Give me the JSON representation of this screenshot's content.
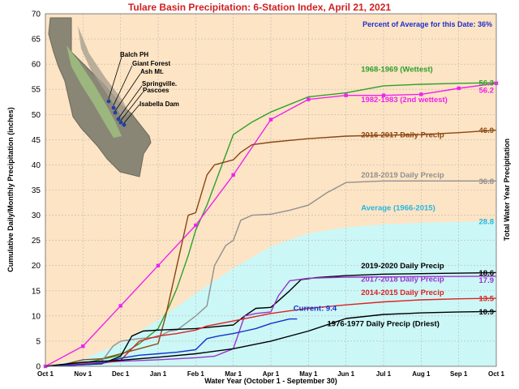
{
  "chart_data": {
    "type": "line",
    "title": "Tulare Basin Precipitation: 6-Station Index, April 21, 2021",
    "note": "Percent of Average for this Date: 36%",
    "xlabel": "Water Year (October 1 - September 30)",
    "ylabel": "Cumulative Daily/Monthly Precipitation (inches)",
    "ylabel_right": "Total Water Year Precipitation",
    "xlim": [
      0,
      12
    ],
    "ylim": [
      0,
      70
    ],
    "x_ticks": [
      {
        "x": 0,
        "label": "Oct 1"
      },
      {
        "x": 1,
        "label": "Nov 1"
      },
      {
        "x": 2,
        "label": "Dec 1"
      },
      {
        "x": 3,
        "label": "Jan 1"
      },
      {
        "x": 4,
        "label": "Feb 1"
      },
      {
        "x": 5,
        "label": "Mar 1"
      },
      {
        "x": 6,
        "label": "Apr 1"
      },
      {
        "x": 7,
        "label": "May 1"
      },
      {
        "x": 8,
        "label": "Jun 1"
      },
      {
        "x": 9,
        "label": "Jul 1"
      },
      {
        "x": 10,
        "label": "Aug 1"
      },
      {
        "x": 11,
        "label": "Sep 1"
      },
      {
        "x": 12,
        "label": "Oct 1"
      }
    ],
    "y_ticks": [
      0,
      5,
      10,
      15,
      20,
      25,
      30,
      35,
      40,
      45,
      50,
      55,
      60,
      65,
      70
    ],
    "grid": true,
    "map_labels": [
      "Balch PH",
      "Giant Forest",
      "Ash Mt.",
      "Springville.",
      "Pascoes",
      "Isabella Dam"
    ],
    "series": [
      {
        "name": "Average (1966-2015)",
        "style": "area",
        "color": "#ccf7f7",
        "label_color": "#22b8e0",
        "final": "28.8",
        "points": [
          [
            0,
            0
          ],
          [
            1,
            1.5
          ],
          [
            2,
            4.5
          ],
          [
            3,
            9.2
          ],
          [
            4,
            14.5
          ],
          [
            5,
            19.5
          ],
          [
            6,
            23.8
          ],
          [
            7,
            26.4
          ],
          [
            8,
            27.6
          ],
          [
            9,
            28.2
          ],
          [
            10,
            28.5
          ],
          [
            11,
            28.7
          ],
          [
            12,
            28.8
          ]
        ]
      },
      {
        "name": "1968-1969 (Wettest)",
        "style": "line",
        "color": "#2ca02c",
        "label_color": "#2ca02c",
        "final": "56.3",
        "points": [
          [
            0,
            0
          ],
          [
            1,
            0.6
          ],
          [
            2,
            2.2
          ],
          [
            2.5,
            4.5
          ],
          [
            3,
            7.5
          ],
          [
            3.3,
            12
          ],
          [
            3.5,
            15.5
          ],
          [
            3.8,
            22
          ],
          [
            4,
            27
          ],
          [
            4.3,
            32
          ],
          [
            4.7,
            40
          ],
          [
            5,
            46
          ],
          [
            5.5,
            48.5
          ],
          [
            6,
            50.5
          ],
          [
            7,
            53.5
          ],
          [
            8,
            54.3
          ],
          [
            9,
            55.7
          ],
          [
            10,
            56
          ],
          [
            11,
            56.2
          ],
          [
            12,
            56.3
          ]
        ]
      },
      {
        "name": "1982-1983 (2nd wettest)",
        "style": "line-markers",
        "color": "#ee22ee",
        "label_color": "#ee22ee",
        "final": "56.2",
        "points": [
          [
            0,
            0
          ],
          [
            1,
            4
          ],
          [
            2,
            12
          ],
          [
            3,
            20
          ],
          [
            4,
            28
          ],
          [
            5,
            38
          ],
          [
            6,
            49
          ],
          [
            7,
            53
          ],
          [
            8,
            53.8
          ],
          [
            9,
            53.8
          ],
          [
            10,
            54
          ],
          [
            11,
            55.2
          ],
          [
            12,
            56.2
          ]
        ]
      },
      {
        "name": "2016-2017 Daily Precip",
        "style": "line",
        "color": "#8b4513",
        "label_color": "#8b4513",
        "final": "46.9",
        "points": [
          [
            0,
            0
          ],
          [
            0.5,
            0.4
          ],
          [
            1,
            1.3
          ],
          [
            1.5,
            1.5
          ],
          [
            2,
            2.5
          ],
          [
            2.5,
            3.5
          ],
          [
            3,
            4.5
          ],
          [
            3.2,
            10
          ],
          [
            3.5,
            20
          ],
          [
            3.8,
            30
          ],
          [
            4,
            30.5
          ],
          [
            4.3,
            38
          ],
          [
            4.5,
            40
          ],
          [
            5,
            41
          ],
          [
            5.2,
            42.5
          ],
          [
            5.5,
            44
          ],
          [
            6,
            44.5
          ],
          [
            7,
            45.2
          ],
          [
            8,
            45.7
          ],
          [
            9,
            45.9
          ],
          [
            10,
            46
          ],
          [
            11,
            46.4
          ],
          [
            12,
            46.9
          ]
        ]
      },
      {
        "name": "2018-2019 Daily Precip",
        "style": "line",
        "color": "#909090",
        "label_color": "#909090",
        "final": "36.8",
        "points": [
          [
            0,
            0
          ],
          [
            1,
            0.7
          ],
          [
            1.5,
            1
          ],
          [
            1.8,
            4
          ],
          [
            2,
            5
          ],
          [
            2.5,
            5.5
          ],
          [
            3,
            5.8
          ],
          [
            3.3,
            7
          ],
          [
            3.5,
            7.2
          ],
          [
            4,
            10
          ],
          [
            4.3,
            12
          ],
          [
            4.5,
            20
          ],
          [
            4.8,
            24
          ],
          [
            5,
            25
          ],
          [
            5.2,
            29
          ],
          [
            5.5,
            30
          ],
          [
            6,
            30.2
          ],
          [
            6.5,
            31
          ],
          [
            7,
            32
          ],
          [
            7.5,
            34.5
          ],
          [
            8,
            36.5
          ],
          [
            9,
            36.8
          ],
          [
            12,
            36.8
          ]
        ]
      },
      {
        "name": "2019-2020 Daily Precip",
        "style": "line",
        "color": "#000000",
        "label_color": "#000000",
        "final": "18.6",
        "points": [
          [
            0,
            0
          ],
          [
            1,
            0.3
          ],
          [
            1.5,
            0.5
          ],
          [
            2,
            2
          ],
          [
            2.3,
            6
          ],
          [
            2.6,
            7
          ],
          [
            3,
            7.2
          ],
          [
            4,
            7.5
          ],
          [
            5,
            8.2
          ],
          [
            5.3,
            10
          ],
          [
            5.6,
            11.5
          ],
          [
            6,
            11.7
          ],
          [
            6.2,
            13
          ],
          [
            6.5,
            15
          ],
          [
            6.8,
            17.2
          ],
          [
            7.2,
            17.6
          ],
          [
            8,
            18
          ],
          [
            9,
            18.3
          ],
          [
            12,
            18.6
          ]
        ]
      },
      {
        "name": "2017-2018 Daily Precip",
        "style": "line",
        "color": "#9933cc",
        "label_color": "#9933cc",
        "final": "17.9",
        "points": [
          [
            0,
            0
          ],
          [
            1,
            0.5
          ],
          [
            2,
            1
          ],
          [
            3,
            1.3
          ],
          [
            4,
            1.7
          ],
          [
            4.5,
            2
          ],
          [
            5,
            3.5
          ],
          [
            5.3,
            10
          ],
          [
            5.6,
            10.5
          ],
          [
            6,
            10.8
          ],
          [
            6.2,
            14
          ],
          [
            6.5,
            17
          ],
          [
            7,
            17.5
          ],
          [
            8,
            17.7
          ],
          [
            12,
            17.9
          ]
        ]
      },
      {
        "name": "2014-2015 Daily Precip",
        "style": "line",
        "color": "#dd2222",
        "label_color": "#dd2222",
        "final": "13.5",
        "points": [
          [
            0,
            0
          ],
          [
            1,
            0.4
          ],
          [
            1.5,
            0.6
          ],
          [
            2,
            1.2
          ],
          [
            2.5,
            5
          ],
          [
            3,
            6
          ],
          [
            3.5,
            6.5
          ],
          [
            4,
            7.2
          ],
          [
            4.3,
            8
          ],
          [
            5,
            9
          ],
          [
            6,
            10.5
          ],
          [
            6.5,
            11
          ],
          [
            7,
            11.5
          ],
          [
            8,
            12.2
          ],
          [
            9,
            12.8
          ],
          [
            10,
            13.2
          ],
          [
            11,
            13.4
          ],
          [
            12,
            13.5
          ]
        ]
      },
      {
        "name": "Current: 9.4",
        "style": "line",
        "color": "#1133cc",
        "label_color": "#1133cc",
        "final": "",
        "points": [
          [
            0,
            0
          ],
          [
            1,
            0.3
          ],
          [
            1.5,
            0.6
          ],
          [
            2,
            1.6
          ],
          [
            2.5,
            2.2
          ],
          [
            3,
            2.5
          ],
          [
            3.5,
            2.8
          ],
          [
            4,
            3.3
          ],
          [
            4.3,
            5.5
          ],
          [
            4.6,
            6
          ],
          [
            5,
            6.5
          ],
          [
            5.3,
            7
          ],
          [
            5.6,
            7.5
          ],
          [
            6,
            8.5
          ],
          [
            6.5,
            9.4
          ],
          [
            6.7,
            9.4
          ]
        ]
      },
      {
        "name": "1976-1977 Daily Precip (Driest)",
        "style": "line",
        "color": "#000000",
        "label_color": "#000000",
        "final": "10.9",
        "points": [
          [
            0,
            0
          ],
          [
            1,
            0.8
          ],
          [
            2,
            1.2
          ],
          [
            3,
            1.8
          ],
          [
            4,
            2.5
          ],
          [
            5,
            3.5
          ],
          [
            6,
            5
          ],
          [
            7,
            7
          ],
          [
            8,
            9.5
          ],
          [
            9,
            10.3
          ],
          [
            10,
            10.6
          ],
          [
            11,
            10.8
          ],
          [
            12,
            10.9
          ]
        ]
      }
    ],
    "label_positions": [
      {
        "series": 1,
        "x": 8.4,
        "y": 58.5
      },
      {
        "series": 2,
        "x": 8.4,
        "y": 52.5
      },
      {
        "series": 3,
        "x": 8.4,
        "y": 45.5
      },
      {
        "series": 4,
        "x": 8.4,
        "y": 37.5
      },
      {
        "series": 0,
        "x": 8.4,
        "y": 31.0
      },
      {
        "series": 5,
        "x": 8.4,
        "y": 19.5
      },
      {
        "series": 6,
        "x": 8.4,
        "y": 16.8
      },
      {
        "series": 7,
        "x": 8.4,
        "y": 14.2
      },
      {
        "series": 8,
        "x": 6.6,
        "y": 11.0
      },
      {
        "series": 9,
        "x": 7.5,
        "y": 8.0
      }
    ]
  }
}
